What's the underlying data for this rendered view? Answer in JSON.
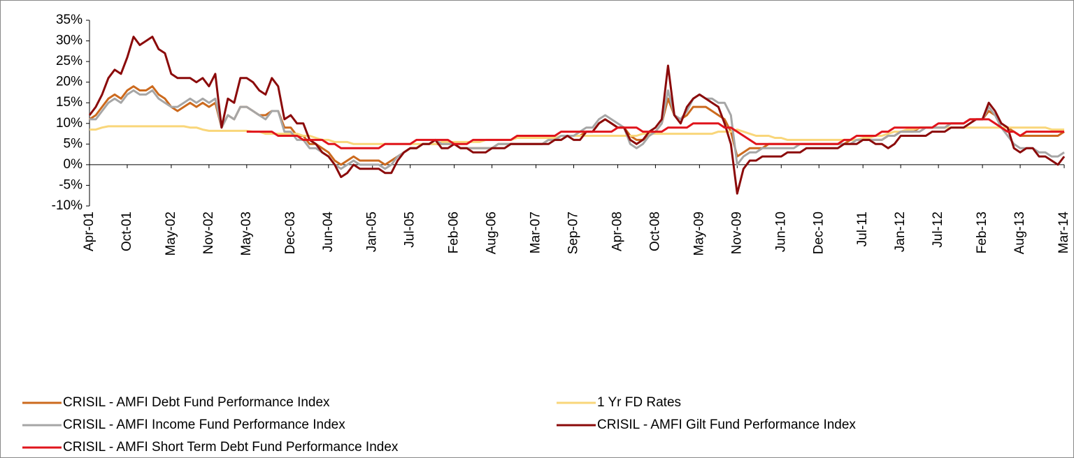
{
  "chart_data": {
    "type": "line",
    "categories": [
      "Apr-01",
      null,
      null,
      null,
      null,
      null,
      "Oct-01",
      null,
      null,
      null,
      null,
      null,
      null,
      "May-02",
      null,
      null,
      null,
      null,
      null,
      "Nov-02",
      null,
      null,
      null,
      null,
      null,
      "May-03",
      null,
      null,
      null,
      null,
      null,
      null,
      "Dec-03",
      null,
      null,
      null,
      null,
      null,
      "Jun-04",
      null,
      null,
      null,
      null,
      null,
      null,
      "Jan-05",
      null,
      null,
      null,
      null,
      null,
      "Jul-05",
      null,
      null,
      null,
      null,
      null,
      null,
      "Feb-06",
      null,
      null,
      null,
      null,
      null,
      "Aug-06",
      null,
      null,
      null,
      null,
      null,
      null,
      "Mar-07",
      null,
      null,
      null,
      null,
      null,
      "Sep-07",
      null,
      null,
      null,
      null,
      null,
      null,
      "Apr-08",
      null,
      null,
      null,
      null,
      null,
      "Oct-08",
      null,
      null,
      null,
      null,
      null,
      null,
      "May-09",
      null,
      null,
      null,
      null,
      null,
      "Nov-09",
      null,
      null,
      null,
      null,
      null,
      null,
      "Jun-10",
      null,
      null,
      null,
      null,
      null,
      "Dec-10",
      null,
      null,
      null,
      null,
      null,
      null,
      "Jul-11",
      null,
      null,
      null,
      null,
      null,
      "Jan-12",
      null,
      null,
      null,
      null,
      null,
      "Jul-12",
      null,
      null,
      null,
      null,
      null,
      null,
      "Feb-13",
      null,
      null,
      null,
      null,
      null,
      "Aug-13",
      null,
      null,
      null,
      null,
      null,
      null,
      "Mar-14"
    ],
    "series": [
      {
        "name": "CRISIL - AMFI Debt Fund Performance Index",
        "color": "#cc6a1e",
        "values": [
          11,
          12,
          14,
          16,
          17,
          16,
          18,
          19,
          18,
          18,
          19,
          17,
          16,
          14,
          13,
          14,
          15,
          14,
          15,
          14,
          15,
          9,
          12,
          11,
          14,
          14,
          13,
          12,
          12,
          13,
          13,
          9,
          9,
          7,
          7,
          5,
          5,
          4,
          3,
          1,
          0,
          1,
          2,
          1,
          1,
          1,
          1,
          0,
          1,
          2,
          3,
          4,
          4,
          5,
          5,
          5,
          5,
          5,
          5,
          4,
          4,
          4,
          4,
          4,
          4,
          5,
          5,
          5,
          5,
          5,
          5,
          5,
          5,
          6,
          6,
          6,
          7,
          7,
          7,
          8,
          8,
          10,
          11,
          10,
          9,
          9,
          7,
          6,
          6,
          7,
          8,
          10,
          16,
          12,
          11,
          12,
          14,
          14,
          14,
          13,
          12,
          11,
          8,
          2,
          3,
          4,
          4,
          4,
          5,
          5,
          5,
          5,
          5,
          5,
          5,
          5,
          5,
          5,
          5,
          5,
          5,
          6,
          6,
          6,
          6,
          6,
          6,
          7,
          7,
          8,
          8,
          8,
          9,
          9,
          9,
          9,
          9,
          10,
          10,
          10,
          11,
          11,
          11,
          13,
          12,
          10,
          9,
          8,
          7,
          7,
          7,
          7,
          7,
          7,
          7,
          8
        ]
      },
      {
        "name": "1 Yr FD Rates",
        "color": "#f9d67a",
        "values": [
          8.5,
          8.5,
          9,
          9.3,
          9.3,
          9.3,
          9.3,
          9.3,
          9.3,
          9.3,
          9.3,
          9.3,
          9.3,
          9.3,
          9.3,
          9.3,
          9,
          9,
          8.5,
          8.2,
          8.2,
          8.2,
          8.2,
          8.2,
          8.2,
          8.2,
          8,
          8,
          7.5,
          7.5,
          7.5,
          7.5,
          7.5,
          7.5,
          7,
          7,
          6.5,
          6,
          6,
          5.5,
          5.5,
          5.5,
          5,
          5,
          5,
          5,
          5,
          5,
          5,
          5,
          5,
          5,
          5,
          5,
          5,
          5,
          5.5,
          5.5,
          5.5,
          5.5,
          5.5,
          5.5,
          5.5,
          6,
          6,
          6,
          6,
          6,
          6.5,
          6.5,
          6.5,
          6.5,
          6.5,
          6.5,
          6.5,
          7,
          7,
          7,
          7,
          7,
          7,
          7,
          7,
          7,
          7,
          7,
          7,
          7,
          7.5,
          7.5,
          7.5,
          7.5,
          7.5,
          7.5,
          7.5,
          7.5,
          7.5,
          7.5,
          7.5,
          7.5,
          8,
          8,
          8,
          8.5,
          8,
          7.5,
          7,
          7,
          7,
          6.5,
          6.5,
          6,
          6,
          6,
          6,
          6,
          6,
          6,
          6,
          6,
          6,
          6,
          6,
          6.5,
          6.5,
          7,
          7,
          7.5,
          8,
          8,
          8.5,
          8.5,
          9,
          9,
          9,
          9,
          9,
          9,
          9,
          9,
          9,
          9,
          9,
          9,
          9,
          9,
          9,
          9,
          9,
          9,
          9,
          9,
          9,
          8.5,
          8.5,
          8.5
        ]
      },
      {
        "name": "CRISIL - AMFI Income Fund Performance Index",
        "color": "#a6a6a6",
        "values": [
          11,
          11,
          13,
          15,
          16,
          15,
          17,
          18,
          17,
          17,
          18,
          16,
          15,
          14,
          14,
          15,
          16,
          15,
          16,
          15,
          16,
          9,
          12,
          11,
          14,
          14,
          13,
          12,
          11,
          13,
          13,
          8,
          8,
          6,
          6,
          4,
          4,
          3,
          2,
          0,
          -1,
          0,
          1,
          0,
          0,
          0,
          0,
          -1,
          0,
          2,
          3,
          4,
          4,
          5,
          5,
          6,
          5,
          5,
          5,
          4,
          4,
          4,
          4,
          4,
          4,
          5,
          5,
          5,
          5,
          5,
          5,
          5,
          5,
          6,
          6,
          7,
          7,
          7,
          8,
          9,
          9,
          11,
          12,
          11,
          10,
          9,
          5,
          4,
          5,
          7,
          8,
          10,
          18,
          12,
          11,
          13,
          16,
          17,
          16,
          16,
          15,
          15,
          12,
          0,
          2,
          3,
          3,
          4,
          4,
          4,
          4,
          4,
          4,
          5,
          5,
          5,
          5,
          5,
          5,
          5,
          5,
          5,
          6,
          6,
          6,
          6,
          6,
          7,
          7,
          8,
          8,
          8,
          8,
          9,
          9,
          9,
          9,
          10,
          10,
          10,
          11,
          11,
          11,
          14,
          12,
          9,
          7,
          5,
          4,
          4,
          4,
          3,
          3,
          2,
          2,
          3
        ]
      },
      {
        "name": "CRISIL - AMFI Gilt Fund Performance Index",
        "color": "#8b0a0a",
        "values": [
          12,
          14,
          17,
          21,
          23,
          22,
          26,
          31,
          29,
          30,
          31,
          28,
          27,
          22,
          21,
          21,
          21,
          20,
          21,
          19,
          22,
          9,
          16,
          15,
          21,
          21,
          20,
          18,
          17,
          21,
          19,
          11,
          12,
          10,
          10,
          6,
          5,
          3,
          2,
          0,
          -3,
          -2,
          0,
          -1,
          -1,
          -1,
          -1,
          -2,
          -2,
          1,
          3,
          4,
          4,
          5,
          5,
          6,
          4,
          4,
          5,
          4,
          4,
          3,
          3,
          3,
          4,
          4,
          4,
          5,
          5,
          5,
          5,
          5,
          5,
          5,
          6,
          6,
          7,
          6,
          6,
          8,
          8,
          10,
          11,
          10,
          9,
          9,
          6,
          5,
          6,
          8,
          9,
          11,
          24,
          12,
          10,
          14,
          16,
          17,
          16,
          15,
          14,
          10,
          5,
          -7,
          -1,
          1,
          1,
          2,
          2,
          2,
          2,
          3,
          3,
          3,
          4,
          4,
          4,
          4,
          4,
          4,
          5,
          5,
          5,
          6,
          6,
          5,
          5,
          4,
          5,
          7,
          7,
          7,
          7,
          7,
          8,
          8,
          8,
          9,
          9,
          9,
          10,
          11,
          11,
          15,
          13,
          10,
          9,
          4,
          3,
          4,
          4,
          2,
          2,
          1,
          0,
          2
        ]
      },
      {
        "name": "CRISIL - AMFI Short Term Debt Fund Performance Index",
        "color": "#e0141c",
        "values": [
          null,
          null,
          null,
          null,
          null,
          null,
          null,
          null,
          null,
          null,
          null,
          null,
          null,
          null,
          null,
          null,
          null,
          null,
          null,
          null,
          null,
          null,
          null,
          null,
          null,
          8,
          8,
          8,
          8,
          8,
          7,
          7,
          7,
          7,
          6,
          6,
          6,
          6,
          5,
          5,
          4,
          4,
          4,
          4,
          4,
          4,
          4,
          5,
          5,
          5,
          5,
          5,
          6,
          6,
          6,
          6,
          6,
          6,
          5,
          5,
          5,
          6,
          6,
          6,
          6,
          6,
          6,
          6,
          7,
          7,
          7,
          7,
          7,
          7,
          7,
          8,
          8,
          8,
          8,
          8,
          8,
          8,
          8,
          8,
          9,
          9,
          9,
          9,
          8,
          8,
          8,
          8,
          9,
          9,
          9,
          9,
          10,
          10,
          10,
          10,
          10,
          9,
          9,
          8,
          7,
          6,
          5,
          5,
          5,
          5,
          5,
          5,
          5,
          5,
          5,
          5,
          5,
          5,
          5,
          5,
          6,
          6,
          7,
          7,
          7,
          7,
          8,
          8,
          9,
          9,
          9,
          9,
          9,
          9,
          9,
          10,
          10,
          10,
          10,
          10,
          11,
          11,
          11,
          11,
          10,
          9,
          8,
          8,
          7,
          8,
          8,
          8,
          8,
          8,
          8,
          8
        ]
      }
    ],
    "ylim": [
      -10,
      35
    ],
    "yticks": [
      {
        "value": -10,
        "label": "-10%"
      },
      {
        "value": -5,
        "label": "-5%"
      },
      {
        "value": 0,
        "label": "0%"
      },
      {
        "value": 5,
        "label": "5%"
      },
      {
        "value": 10,
        "label": "10%"
      },
      {
        "value": 15,
        "label": "15%"
      },
      {
        "value": 20,
        "label": "20%"
      },
      {
        "value": 25,
        "label": "25%"
      },
      {
        "value": 30,
        "label": "30%"
      },
      {
        "value": 35,
        "label": "35%"
      }
    ],
    "grid": false,
    "legend": "bottom"
  }
}
